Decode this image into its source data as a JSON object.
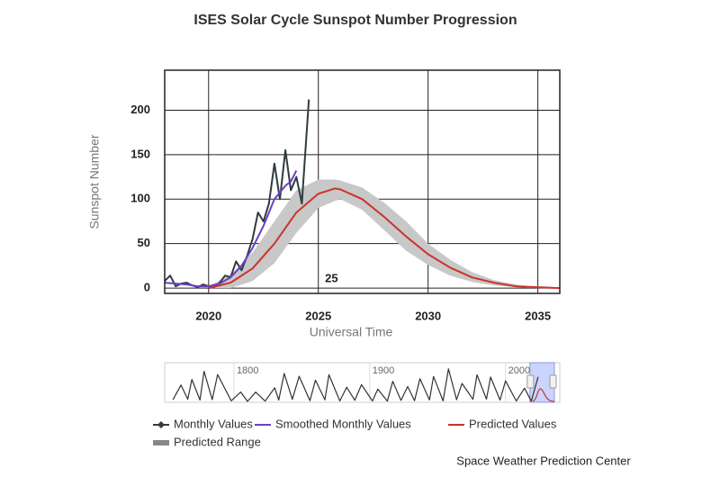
{
  "chart_data": [
    {
      "type": "line",
      "title": "ISES Solar Cycle Sunspot Number Progression",
      "xlabel": "Universal Time",
      "ylabel": "Sunspot Number",
      "annotation": {
        "text": "25",
        "x": 2025.6,
        "y": 10
      },
      "source": "Space Weather Prediction Center",
      "xlim": [
        2018,
        2036
      ],
      "ylim": [
        -6,
        245
      ],
      "xticks": [
        2020,
        2025,
        2030,
        2035
      ],
      "yticks": [
        0,
        50,
        100,
        150,
        200
      ],
      "grid": true,
      "series": [
        {
          "name": "Monthly Values",
          "color": "#2f3b40",
          "x": [
            2018.0,
            2018.25,
            2018.5,
            2018.75,
            2019.0,
            2019.25,
            2019.5,
            2019.75,
            2020.0,
            2020.25,
            2020.5,
            2020.75,
            2021.0,
            2021.25,
            2021.5,
            2021.75,
            2022.0,
            2022.25,
            2022.5,
            2022.75,
            2023.0,
            2023.25,
            2023.5,
            2023.75,
            2024.0,
            2024.25,
            2024.57
          ],
          "values": [
            8,
            14,
            2,
            5,
            6,
            3,
            1,
            4,
            2,
            1,
            6,
            14,
            12,
            30,
            20,
            36,
            55,
            85,
            75,
            95,
            140,
            100,
            155,
            110,
            125,
            95,
            212
          ]
        },
        {
          "name": "Smoothed Monthly Values",
          "color": "#6a3fc8",
          "x": [
            2018.0,
            2018.5,
            2019.0,
            2019.5,
            2020.0,
            2020.5,
            2021.0,
            2021.5,
            2022.0,
            2022.5,
            2023.0,
            2023.5,
            2023.75,
            2024.0
          ],
          "values": [
            6,
            5,
            4,
            2,
            2,
            5,
            12,
            25,
            45,
            70,
            100,
            115,
            120,
            132
          ]
        },
        {
          "name": "Predicted Values",
          "color": "#c8352a",
          "x": [
            2020,
            2021,
            2022,
            2023,
            2024,
            2025,
            2025.75,
            2026,
            2027,
            2028,
            2029,
            2030,
            2031,
            2032,
            2033,
            2034,
            2035,
            2036
          ],
          "values": [
            0,
            6,
            22,
            50,
            85,
            106,
            112,
            111,
            100,
            80,
            58,
            38,
            23,
            12,
            6,
            2,
            1,
            0
          ]
        },
        {
          "name": "Predicted Range",
          "color": "#c8c8c8",
          "x": [
            2020,
            2021,
            2022,
            2023,
            2024,
            2025,
            2025.75,
            2026,
            2027,
            2028,
            2029,
            2030,
            2031,
            2032,
            2033,
            2034,
            2035,
            2036
          ],
          "high": [
            2,
            15,
            40,
            75,
            110,
            122,
            122,
            121,
            113,
            96,
            75,
            50,
            32,
            18,
            9,
            4,
            1,
            0
          ],
          "low": [
            0,
            0,
            8,
            28,
            62,
            90,
            98,
            100,
            88,
            65,
            42,
            26,
            14,
            7,
            3,
            1,
            0,
            0
          ]
        }
      ]
    },
    {
      "type": "line",
      "xlim": [
        1749,
        2040
      ],
      "ylim": [
        0,
        300
      ],
      "xticks": [
        1800,
        1900,
        2000
      ],
      "color": "#333333",
      "x": [
        1755,
        1761,
        1766,
        1769,
        1775,
        1778,
        1784,
        1788,
        1798,
        1805,
        1810,
        1816,
        1823,
        1830,
        1833,
        1837,
        1843,
        1848,
        1856,
        1860,
        1867,
        1870,
        1878,
        1883,
        1889,
        1894,
        1902,
        1906,
        1913,
        1917,
        1923,
        1928,
        1933,
        1937,
        1944,
        1947,
        1954,
        1958,
        1964,
        1968,
        1976,
        1979,
        1986,
        1989,
        1996,
        2000,
        2008,
        2014,
        2019,
        2024
      ],
      "values": [
        14,
        144,
        19,
        193,
        12,
        264,
        16,
        235,
        5,
        82,
        0,
        81,
        2,
        119,
        12,
        245,
        18,
        220,
        6,
        186,
        14,
        234,
        4,
        124,
        10,
        147,
        4,
        107,
        2,
        176,
        9,
        130,
        6,
        199,
        13,
        219,
        5,
        285,
        15,
        157,
        18,
        233,
        20,
        213,
        12,
        180,
        3,
        116,
        2,
        215
      ]
    }
  ]
}
